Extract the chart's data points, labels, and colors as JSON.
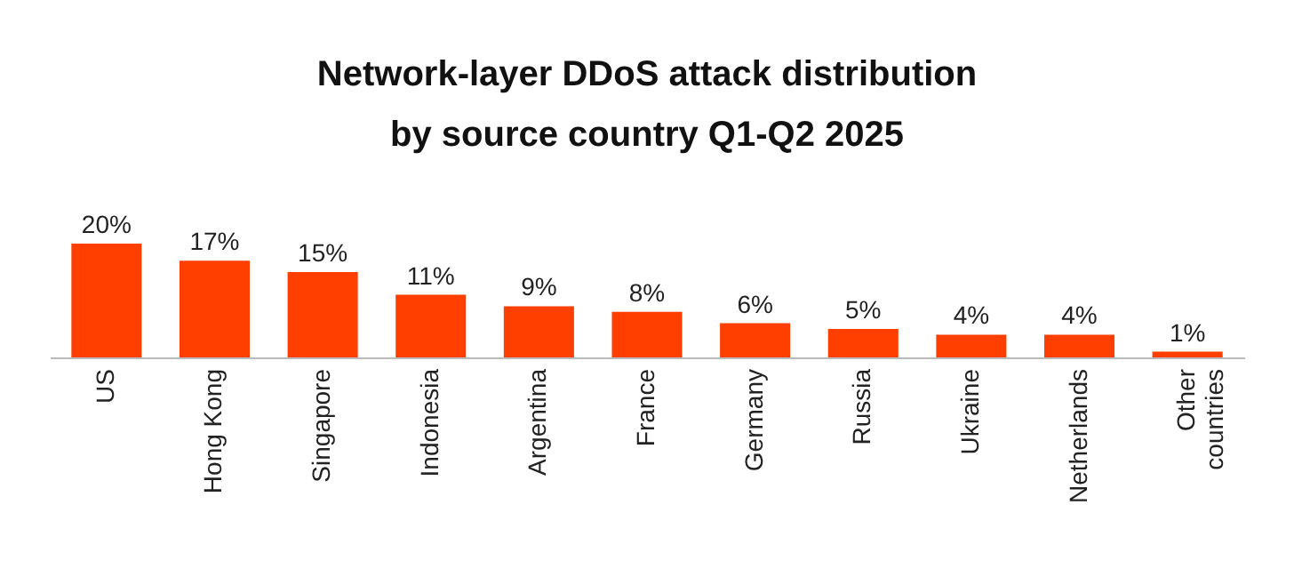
{
  "chart_data": {
    "type": "bar",
    "title": "Network-layer DDoS attack distribution\nby source country Q1-Q2 2025",
    "categories": [
      "US",
      "Hong Kong",
      "Singapore",
      "Indonesia",
      "Argentina",
      "France",
      "Germany",
      "Russia",
      "Ukraine",
      "Netherlands",
      "Other\ncountries"
    ],
    "values": [
      20,
      17,
      15,
      11,
      9,
      8,
      6,
      5,
      4,
      4,
      1
    ],
    "value_labels": [
      "20%",
      "17%",
      "15%",
      "11%",
      "9%",
      "8%",
      "6%",
      "5%",
      "4%",
      "4%",
      "1%"
    ],
    "color": "#ff3f00"
  }
}
